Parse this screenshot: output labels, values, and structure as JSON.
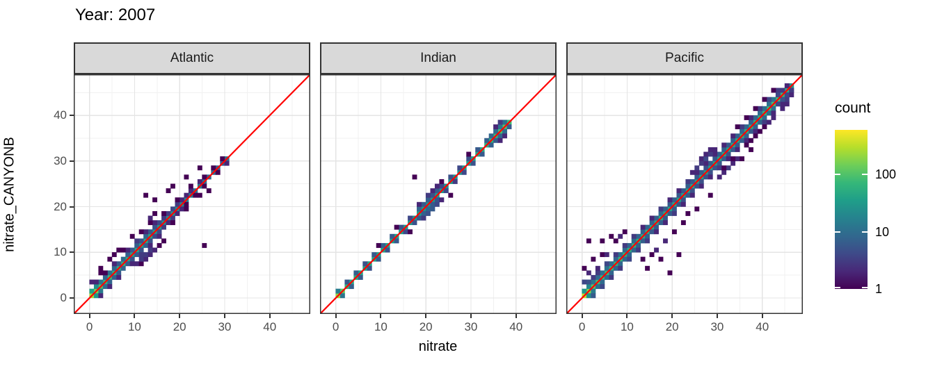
{
  "chart_data": {
    "type": "heatmap",
    "subtype": "bin2d-density-scatter-faceted",
    "title": "Year: 2007",
    "xlabel": "nitrate",
    "ylabel": "nitrate_CANYONB",
    "facet_labels": [
      "Atlantic",
      "Indian",
      "Pacific"
    ],
    "axis": {
      "domain": [
        -3.5,
        49
      ],
      "major_ticks": [
        0,
        10,
        20,
        30,
        40
      ],
      "minor_ticks": [
        5,
        15,
        25,
        35,
        45
      ],
      "grid": true
    },
    "identity_line": {
      "equation": "y = x",
      "color": "#ff0000"
    },
    "legend": {
      "title": "count",
      "ticks": [
        1,
        10,
        100
      ],
      "scale": "log10",
      "max": 600,
      "position": "right",
      "palette": "viridis"
    },
    "bin_width": 1,
    "facets": [
      {
        "name": "Atlantic",
        "diag": [
          260,
          170,
          95,
          65,
          75,
          58,
          48,
          62,
          52,
          42,
          46,
          38,
          52,
          44,
          36,
          30,
          26,
          22,
          28,
          24,
          20,
          17,
          14,
          12,
          14,
          10,
          8,
          9,
          7,
          6,
          11
        ],
        "above": [
          40,
          25,
          12,
          8,
          10,
          8,
          6,
          9,
          7,
          6,
          7,
          5,
          8,
          6,
          5,
          4,
          3,
          3,
          4,
          3,
          2,
          2,
          2,
          0,
          2,
          1,
          0,
          1,
          0,
          1
        ],
        "below": [
          0,
          30,
          14,
          9,
          8,
          7,
          6,
          8,
          6,
          5,
          6,
          5,
          7,
          5,
          4,
          4,
          3,
          2,
          3,
          2,
          2,
          1,
          0,
          1,
          0,
          1,
          0,
          0,
          1,
          0,
          2
        ],
        "scatter": [
          [
            1,
            3,
            2
          ],
          [
            3,
            5,
            1
          ],
          [
            5,
            7,
            2
          ],
          [
            8,
            10,
            2
          ],
          [
            10,
            12,
            3
          ],
          [
            12,
            14,
            2
          ],
          [
            14,
            16,
            2
          ],
          [
            16,
            18,
            1
          ],
          [
            19,
            21,
            1
          ],
          [
            22,
            24,
            1
          ],
          [
            2,
            0,
            2
          ],
          [
            4,
            2,
            2
          ],
          [
            6,
            4,
            2
          ],
          [
            9,
            7,
            2
          ],
          [
            11,
            9,
            3
          ],
          [
            13,
            11,
            2
          ],
          [
            15,
            13,
            2
          ],
          [
            18,
            16,
            1
          ],
          [
            21,
            19,
            1
          ],
          [
            24,
            22,
            1
          ],
          [
            2,
            5,
            1
          ],
          [
            7,
            10,
            1
          ],
          [
            11,
            14,
            1
          ],
          [
            13,
            16,
            1
          ],
          [
            9,
            13,
            1
          ],
          [
            5,
            9,
            1
          ],
          [
            13,
            17,
            2
          ],
          [
            14,
            18,
            1
          ],
          [
            0,
            3,
            2
          ],
          [
            4,
            8,
            1
          ],
          [
            6,
            10,
            1
          ],
          [
            2,
            6,
            1
          ],
          [
            10,
            7,
            2
          ],
          [
            11,
            7,
            1
          ],
          [
            12,
            8,
            2
          ],
          [
            12,
            9,
            3
          ],
          [
            13,
            9,
            2
          ],
          [
            13,
            10,
            3
          ],
          [
            14,
            10,
            2
          ],
          [
            15,
            11,
            1
          ],
          [
            11,
            8,
            3
          ],
          [
            16,
            12,
            1
          ],
          [
            12,
            22,
            1
          ],
          [
            14,
            21,
            1
          ],
          [
            18,
            24,
            1
          ],
          [
            17,
            23,
            1
          ],
          [
            25,
            11,
            1
          ],
          [
            21,
            26,
            1
          ],
          [
            24,
            28,
            1
          ],
          [
            26,
            23,
            1
          ]
        ]
      },
      {
        "name": "Indian",
        "diag": [
          220,
          120,
          60,
          45,
          50,
          42,
          38,
          44,
          40,
          36,
          42,
          38,
          35,
          40,
          36,
          32,
          30,
          28,
          35,
          30,
          26,
          30,
          34,
          28,
          26,
          30,
          28,
          26,
          30,
          34,
          40,
          45,
          50,
          55,
          60,
          70,
          90,
          110,
          80
        ],
        "above": [
          15,
          0,
          6,
          0,
          7,
          0,
          5,
          0,
          6,
          0,
          7,
          0,
          6,
          0,
          5,
          0,
          4,
          0,
          8,
          6,
          7,
          5,
          6,
          4,
          0,
          5,
          0,
          4,
          0,
          5,
          0,
          6,
          0,
          7,
          8,
          9,
          12,
          10
        ],
        "below": [
          0,
          12,
          0,
          7,
          0,
          6,
          0,
          5,
          0,
          6,
          0,
          5,
          0,
          6,
          0,
          4,
          0,
          5,
          6,
          7,
          8,
          6,
          5,
          0,
          4,
          0,
          3,
          0,
          4,
          0,
          5,
          0,
          6,
          0,
          7,
          6,
          8,
          9,
          6
        ],
        "scatter": [
          [
            18,
            20,
            2
          ],
          [
            20,
            22,
            3
          ],
          [
            22,
            24,
            2
          ],
          [
            35,
            37,
            2
          ],
          [
            36,
            38,
            3
          ],
          [
            19,
            17,
            3
          ],
          [
            20,
            18,
            5
          ],
          [
            21,
            19,
            6
          ],
          [
            22,
            20,
            4
          ],
          [
            23,
            21,
            2
          ],
          [
            36,
            34,
            2
          ],
          [
            37,
            35,
            2
          ],
          [
            17,
            26,
            1
          ],
          [
            25,
            22,
            1
          ],
          [
            13,
            15,
            1
          ],
          [
            9,
            11,
            1
          ],
          [
            16,
            14,
            1
          ],
          [
            29,
            31,
            1
          ],
          [
            21,
            23,
            2
          ],
          [
            23,
            25,
            1
          ]
        ]
      },
      {
        "name": "Pacific",
        "diag": [
          320,
          200,
          110,
          80,
          70,
          75,
          65,
          60,
          70,
          60,
          55,
          60,
          55,
          50,
          55,
          48,
          45,
          50,
          46,
          42,
          45,
          40,
          38,
          42,
          40,
          38,
          40,
          36,
          38,
          40,
          42,
          44,
          40,
          45,
          48,
          50,
          55,
          52,
          58,
          60,
          70,
          80,
          90,
          85,
          75,
          55,
          30
        ],
        "above": [
          30,
          20,
          12,
          9,
          10,
          11,
          9,
          8,
          10,
          9,
          8,
          9,
          8,
          7,
          8,
          7,
          7,
          8,
          7,
          6,
          7,
          6,
          6,
          7,
          6,
          6,
          6,
          5,
          6,
          6,
          7,
          7,
          6,
          7,
          7,
          8,
          8,
          7,
          8,
          9,
          10,
          11,
          12,
          10,
          8,
          5
        ],
        "below": [
          0,
          25,
          14,
          10,
          9,
          10,
          8,
          8,
          9,
          8,
          8,
          8,
          7,
          7,
          7,
          6,
          6,
          7,
          6,
          6,
          6,
          5,
          5,
          6,
          5,
          5,
          5,
          5,
          5,
          5,
          6,
          6,
          5,
          6,
          6,
          7,
          7,
          6,
          7,
          8,
          9,
          10,
          10,
          9,
          7,
          4,
          2
        ],
        "scatter": [
          [
            1,
            3,
            5
          ],
          [
            3,
            5,
            3
          ],
          [
            5,
            7,
            4
          ],
          [
            7,
            9,
            3
          ],
          [
            9,
            11,
            3
          ],
          [
            11,
            13,
            3
          ],
          [
            13,
            15,
            2
          ],
          [
            15,
            17,
            2
          ],
          [
            17,
            19,
            3
          ],
          [
            19,
            21,
            2
          ],
          [
            21,
            23,
            2
          ],
          [
            23,
            25,
            3
          ],
          [
            25,
            27,
            2
          ],
          [
            27,
            29,
            2
          ],
          [
            29,
            31,
            2
          ],
          [
            31,
            33,
            2
          ],
          [
            33,
            35,
            2
          ],
          [
            35,
            37,
            3
          ],
          [
            37,
            39,
            2
          ],
          [
            39,
            41,
            3
          ],
          [
            41,
            43,
            4
          ],
          [
            43,
            45,
            3
          ],
          [
            2,
            0,
            6
          ],
          [
            4,
            2,
            4
          ],
          [
            6,
            4,
            3
          ],
          [
            8,
            6,
            3
          ],
          [
            10,
            8,
            4
          ],
          [
            12,
            10,
            3
          ],
          [
            14,
            12,
            3
          ],
          [
            16,
            14,
            2
          ],
          [
            18,
            16,
            2
          ],
          [
            20,
            18,
            3
          ],
          [
            22,
            20,
            2
          ],
          [
            24,
            22,
            2
          ],
          [
            26,
            24,
            2
          ],
          [
            28,
            26,
            2
          ],
          [
            30,
            28,
            3
          ],
          [
            32,
            30,
            2
          ],
          [
            34,
            32,
            2
          ],
          [
            36,
            34,
            2
          ],
          [
            38,
            36,
            2
          ],
          [
            40,
            38,
            3
          ],
          [
            42,
            40,
            2
          ],
          [
            44,
            42,
            2
          ],
          [
            24,
            27,
            2
          ],
          [
            25,
            28,
            3
          ],
          [
            26,
            29,
            3
          ],
          [
            26,
            30,
            2
          ],
          [
            27,
            30,
            4
          ],
          [
            27,
            31,
            2
          ],
          [
            28,
            31,
            3
          ],
          [
            28,
            32,
            2
          ],
          [
            29,
            32,
            2
          ],
          [
            30,
            26,
            2
          ],
          [
            31,
            27,
            2
          ],
          [
            32,
            28,
            3
          ],
          [
            33,
            29,
            2
          ],
          [
            34,
            30,
            2
          ],
          [
            1,
            12,
            1
          ],
          [
            4,
            12,
            1
          ],
          [
            6,
            13,
            1
          ],
          [
            4,
            9,
            1
          ],
          [
            2,
            8,
            1
          ],
          [
            0,
            6,
            1
          ],
          [
            3,
            6,
            2
          ],
          [
            5,
            9,
            2
          ],
          [
            8,
            13,
            2
          ],
          [
            9,
            14,
            1
          ],
          [
            7,
            12,
            1
          ],
          [
            2,
            4,
            3
          ],
          [
            0,
            3,
            4
          ],
          [
            1,
            5,
            2
          ],
          [
            19,
            5,
            1
          ],
          [
            17,
            8,
            1
          ],
          [
            21,
            9,
            1
          ],
          [
            14,
            6,
            1
          ],
          [
            23,
            18,
            1
          ],
          [
            25,
            19,
            1
          ],
          [
            28,
            22,
            1
          ],
          [
            35,
            30,
            1
          ],
          [
            37,
            32,
            1
          ],
          [
            16,
            10,
            2
          ],
          [
            18,
            12,
            2
          ],
          [
            20,
            14,
            1
          ],
          [
            22,
            16,
            1
          ],
          [
            13,
            8,
            1
          ],
          [
            15,
            9,
            1
          ],
          [
            36,
            39,
            1
          ],
          [
            38,
            41,
            1
          ],
          [
            34,
            37,
            1
          ],
          [
            40,
            43,
            1
          ],
          [
            43,
            44,
            4
          ],
          [
            44,
            45,
            3
          ],
          [
            45,
            46,
            2
          ],
          [
            42,
            45,
            1
          ],
          [
            36,
            33,
            1
          ],
          [
            38,
            35,
            1
          ],
          [
            40,
            37,
            1
          ],
          [
            41,
            38,
            2
          ],
          [
            42,
            39,
            2
          ],
          [
            44,
            41,
            2
          ],
          [
            45,
            42,
            2
          ],
          [
            45,
            44,
            4
          ],
          [
            46,
            45,
            3
          ],
          [
            46,
            44,
            2
          ],
          [
            45,
            43,
            3
          ],
          [
            44,
            43,
            5
          ],
          [
            43,
            42,
            4
          ],
          [
            39,
            36,
            1
          ],
          [
            37,
            34,
            1
          ],
          [
            33,
            30,
            1
          ],
          [
            31,
            28,
            1
          ]
        ]
      }
    ]
  },
  "colors": {
    "background": "#ffffff",
    "strip_fill": "#d9d9d9",
    "strip_border": "#333333",
    "panel_border": "#333333",
    "grid_major": "#e4e4e4",
    "grid_minor": "#f1f1f1",
    "tick_mark": "#333333",
    "tick_label": "#4d4d4d",
    "axis_title": "#000000",
    "identity_line": "#ff0000",
    "viridis": [
      "#440154",
      "#482878",
      "#3e4a89",
      "#31688e",
      "#26828e",
      "#1f9e89",
      "#35b779",
      "#6ece58",
      "#b5de2b",
      "#fde725"
    ]
  }
}
